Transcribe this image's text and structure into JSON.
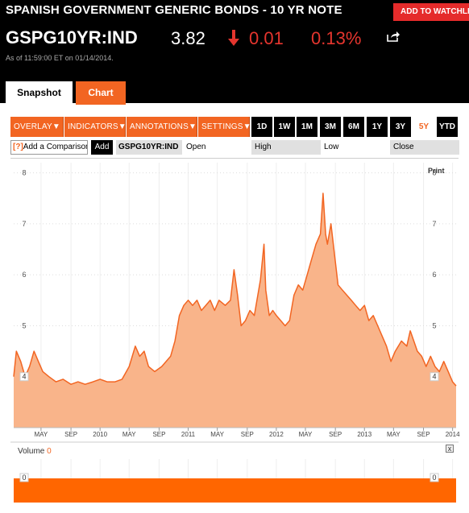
{
  "header": {
    "title": "SPANISH GOVERNMENT GENERIC BONDS - 10 YR NOTE",
    "watch_button": "ADD TO WATCHLIST",
    "ticker": "GSPG10YR:IND",
    "price": "3.82",
    "change": "0.01",
    "change_pct": "0.13%",
    "as_of": "As of 11:59:00 ET on 01/14/2014.",
    "direction": "down",
    "down_color": "#e5352e"
  },
  "tabs": [
    {
      "label": "Snapshot",
      "active": false
    },
    {
      "label": "Chart",
      "active": true
    }
  ],
  "toolbar": {
    "menus": [
      "OVERLAY",
      "INDICATORS",
      "ANNOTATIONS",
      "SETTINGS"
    ],
    "ranges": [
      "1D",
      "1W",
      "1M",
      "3M",
      "6M",
      "1Y",
      "3Y",
      "5Y",
      "YTD"
    ],
    "active_range": "5Y",
    "accent": "#f26522"
  },
  "compare": {
    "help": "[?]",
    "placeholder": "Add a Comparison",
    "add_label": "Add",
    "symbol": "GSPG10YR:IND",
    "fields": [
      "Open",
      "High",
      "Low",
      "Close"
    ]
  },
  "chart_data": {
    "type": "area",
    "title": "",
    "xlabel": "",
    "ylabel": "",
    "print_label": "Print",
    "y_ticks": [
      "4",
      "5",
      "6",
      "7",
      "8"
    ],
    "ylim": [
      3.0,
      8.2
    ],
    "current_marker": "4",
    "x_tick_labels": [
      "MAY",
      "SEP",
      "2010",
      "MAY",
      "SEP",
      "2011",
      "MAY",
      "SEP",
      "2012",
      "MAY",
      "SEP",
      "2013",
      "MAY",
      "SEP",
      "2014"
    ],
    "x_tick_times": [
      2009.33,
      2009.67,
      2010.0,
      2010.33,
      2010.67,
      2011.0,
      2011.33,
      2011.67,
      2012.0,
      2012.33,
      2012.67,
      2013.0,
      2013.33,
      2013.67,
      2014.0
    ],
    "xlim": [
      2009.02,
      2014.04
    ],
    "series": [
      {
        "x": [
          2009.02,
          2009.05,
          2009.1,
          2009.15,
          2009.2,
          2009.25,
          2009.3,
          2009.35,
          2009.42,
          2009.5,
          2009.58,
          2009.67,
          2009.75,
          2009.83,
          2009.92,
          2010.0,
          2010.08,
          2010.17,
          2010.25,
          2010.33,
          2010.4,
          2010.45,
          2010.5,
          2010.55,
          2010.62,
          2010.7,
          2010.8,
          2010.85,
          2010.9,
          2010.95,
          2011.0,
          2011.05,
          2011.1,
          2011.15,
          2011.2,
          2011.25,
          2011.3,
          2011.35,
          2011.42,
          2011.48,
          2011.52,
          2011.56,
          2011.6,
          2011.65,
          2011.7,
          2011.75,
          2011.82,
          2011.86,
          2011.88,
          2011.92,
          2011.96,
          2012.0,
          2012.05,
          2012.1,
          2012.15,
          2012.2,
          2012.25,
          2012.3,
          2012.35,
          2012.4,
          2012.45,
          2012.5,
          2012.53,
          2012.56,
          2012.58,
          2012.62,
          2012.66,
          2012.7,
          2012.75,
          2012.8,
          2012.85,
          2012.9,
          2012.95,
          2013.0,
          2013.05,
          2013.1,
          2013.15,
          2013.2,
          2013.25,
          2013.3,
          2013.35,
          2013.42,
          2013.48,
          2013.52,
          2013.56,
          2013.6,
          2013.65,
          2013.7,
          2013.75,
          2013.8,
          2013.85,
          2013.9,
          2013.95,
          2014.0,
          2014.04
        ],
        "values": [
          4.0,
          4.5,
          4.3,
          4.0,
          4.2,
          4.5,
          4.3,
          4.1,
          4.0,
          3.9,
          3.95,
          3.85,
          3.9,
          3.85,
          3.9,
          3.95,
          3.9,
          3.9,
          3.95,
          4.2,
          4.6,
          4.4,
          4.5,
          4.2,
          4.1,
          4.2,
          4.4,
          4.7,
          5.2,
          5.4,
          5.5,
          5.4,
          5.5,
          5.3,
          5.4,
          5.5,
          5.3,
          5.5,
          5.4,
          5.5,
          6.1,
          5.6,
          5.0,
          5.1,
          5.3,
          5.2,
          5.9,
          6.6,
          5.7,
          5.2,
          5.3,
          5.2,
          5.1,
          5.0,
          5.1,
          5.6,
          5.8,
          5.7,
          6.0,
          6.3,
          6.6,
          6.8,
          7.6,
          6.8,
          6.6,
          7.0,
          6.4,
          5.8,
          5.7,
          5.6,
          5.5,
          5.4,
          5.3,
          5.4,
          5.1,
          5.2,
          5.0,
          4.8,
          4.6,
          4.3,
          4.5,
          4.7,
          4.6,
          4.9,
          4.7,
          4.5,
          4.4,
          4.2,
          4.4,
          4.2,
          4.1,
          4.3,
          4.1,
          3.9,
          3.82
        ]
      }
    ],
    "fill_color": "#f9b48a",
    "line_color": "#f26522"
  },
  "volume": {
    "label": "Volume",
    "value": "0",
    "axis_marker": "0",
    "close_icon": "x",
    "bar_color": "#ff6600"
  }
}
